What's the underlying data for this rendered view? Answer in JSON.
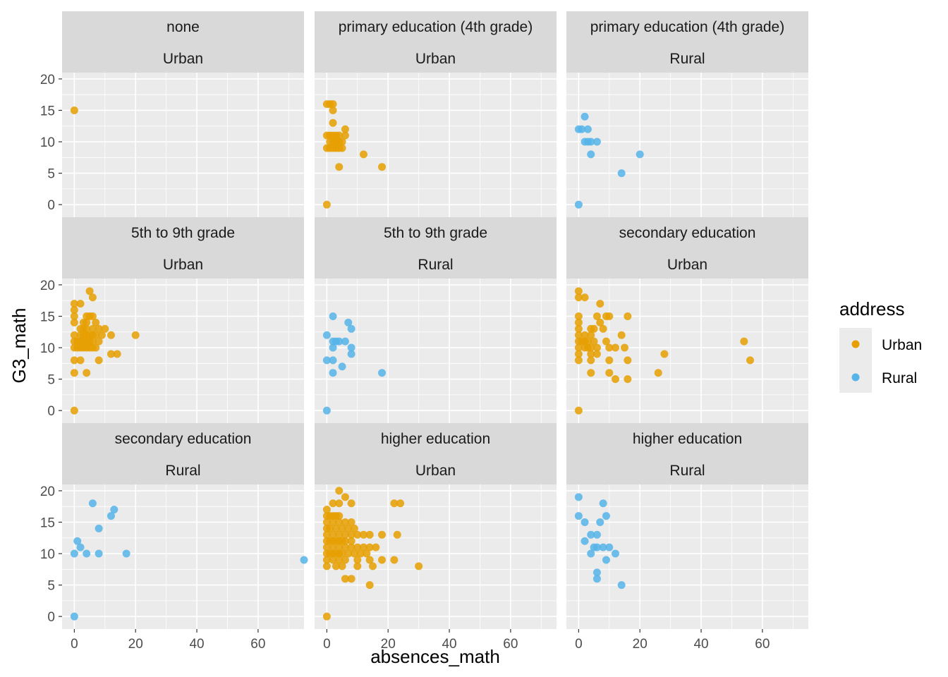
{
  "chart_data": {
    "type": "scatter",
    "xlabel": "absences_math",
    "ylabel": "G3_math",
    "xlim": [
      -4,
      75
    ],
    "ylim": [
      -2,
      21
    ],
    "x_ticks": [
      0,
      20,
      40,
      60
    ],
    "y_ticks": [
      0,
      5,
      10,
      15,
      20
    ],
    "grid": true,
    "legend": {
      "title": "address",
      "placement": "right",
      "items": [
        {
          "name": "Urban",
          "color": "#E69F00"
        },
        {
          "name": "Rural",
          "color": "#56B4E9"
        }
      ]
    },
    "panels": [
      {
        "strip1": "none",
        "strip2": "Urban",
        "address": "Urban",
        "points": [
          [
            0,
            15
          ]
        ]
      },
      {
        "strip1": "primary education (4th grade)",
        "strip2": "Urban",
        "address": "Urban",
        "points": [
          [
            0,
            16
          ],
          [
            1,
            16
          ],
          [
            2,
            16
          ],
          [
            2,
            15
          ],
          [
            2,
            13
          ],
          [
            0,
            11
          ],
          [
            1,
            11
          ],
          [
            2,
            11
          ],
          [
            3,
            11
          ],
          [
            4,
            11
          ],
          [
            6,
            12
          ],
          [
            6,
            11
          ],
          [
            1,
            10
          ],
          [
            2,
            10
          ],
          [
            3,
            10
          ],
          [
            4,
            10
          ],
          [
            5,
            10
          ],
          [
            0,
            9
          ],
          [
            1,
            9
          ],
          [
            2,
            9
          ],
          [
            3,
            9
          ],
          [
            4,
            9
          ],
          [
            5,
            9
          ],
          [
            12,
            8
          ],
          [
            4,
            6
          ],
          [
            18,
            6
          ],
          [
            0,
            0
          ]
        ]
      },
      {
        "strip1": "primary education (4th grade)",
        "strip2": "Rural",
        "address": "Rural",
        "points": [
          [
            2,
            14
          ],
          [
            0,
            12
          ],
          [
            1,
            12
          ],
          [
            3,
            12
          ],
          [
            2,
            10
          ],
          [
            3,
            10
          ],
          [
            4,
            10
          ],
          [
            6,
            10
          ],
          [
            4,
            8
          ],
          [
            20,
            8
          ],
          [
            14,
            5
          ],
          [
            0,
            0
          ]
        ]
      },
      {
        "strip1": "5th to 9th grade",
        "strip2": "Urban",
        "address": "Urban",
        "points": [
          [
            5,
            19
          ],
          [
            0,
            17
          ],
          [
            2,
            17
          ],
          [
            6,
            18
          ],
          [
            0,
            16
          ],
          [
            0,
            15
          ],
          [
            4,
            15
          ],
          [
            5,
            15
          ],
          [
            6,
            15
          ],
          [
            0,
            14
          ],
          [
            3,
            14
          ],
          [
            4,
            14
          ],
          [
            7,
            14
          ],
          [
            2,
            13
          ],
          [
            3,
            13
          ],
          [
            4,
            13
          ],
          [
            6,
            13
          ],
          [
            8,
            13
          ],
          [
            10,
            13
          ],
          [
            0,
            12
          ],
          [
            2,
            12
          ],
          [
            3,
            12
          ],
          [
            4,
            12
          ],
          [
            5,
            12
          ],
          [
            6,
            12
          ],
          [
            7,
            12
          ],
          [
            9,
            12
          ],
          [
            12,
            12
          ],
          [
            20,
            12
          ],
          [
            0,
            11
          ],
          [
            1,
            11
          ],
          [
            2,
            11
          ],
          [
            3,
            11
          ],
          [
            4,
            11
          ],
          [
            5,
            11
          ],
          [
            6,
            11
          ],
          [
            8,
            11
          ],
          [
            0,
            10
          ],
          [
            1,
            10
          ],
          [
            2,
            10
          ],
          [
            3,
            10
          ],
          [
            4,
            10
          ],
          [
            5,
            10
          ],
          [
            6,
            10
          ],
          [
            7,
            10
          ],
          [
            12,
            9
          ],
          [
            14,
            9
          ],
          [
            0,
            8
          ],
          [
            2,
            8
          ],
          [
            8,
            8
          ],
          [
            0,
            6
          ],
          [
            4,
            6
          ],
          [
            0,
            0
          ]
        ]
      },
      {
        "strip1": "5th to 9th grade",
        "strip2": "Rural",
        "address": "Rural",
        "points": [
          [
            2,
            15
          ],
          [
            7,
            14
          ],
          [
            8,
            13
          ],
          [
            0,
            12
          ],
          [
            2,
            11
          ],
          [
            3,
            11
          ],
          [
            4,
            11
          ],
          [
            6,
            11
          ],
          [
            2,
            10
          ],
          [
            8,
            10
          ],
          [
            8,
            9
          ],
          [
            0,
            8
          ],
          [
            2,
            8
          ],
          [
            5,
            7
          ],
          [
            2,
            6
          ],
          [
            18,
            6
          ],
          [
            0,
            0
          ]
        ]
      },
      {
        "strip1": "secondary education",
        "strip2": "Urban",
        "address": "Urban",
        "points": [
          [
            0,
            19
          ],
          [
            2,
            18
          ],
          [
            0,
            18
          ],
          [
            7,
            17
          ],
          [
            0,
            15
          ],
          [
            6,
            15
          ],
          [
            9,
            15
          ],
          [
            10,
            15
          ],
          [
            16,
            15
          ],
          [
            0,
            14
          ],
          [
            7,
            14
          ],
          [
            5,
            13
          ],
          [
            0,
            13
          ],
          [
            4,
            13
          ],
          [
            8,
            13
          ],
          [
            0,
            12
          ],
          [
            2,
            12
          ],
          [
            4,
            12
          ],
          [
            14,
            12
          ],
          [
            0,
            11
          ],
          [
            1,
            11
          ],
          [
            2,
            11
          ],
          [
            3,
            11
          ],
          [
            5,
            11
          ],
          [
            9,
            11
          ],
          [
            54,
            11
          ],
          [
            0,
            10
          ],
          [
            2,
            10
          ],
          [
            3,
            10
          ],
          [
            4,
            10
          ],
          [
            6,
            10
          ],
          [
            10,
            10
          ],
          [
            12,
            10
          ],
          [
            15,
            10
          ],
          [
            0,
            9
          ],
          [
            4,
            9
          ],
          [
            6,
            9
          ],
          [
            28,
            9
          ],
          [
            0,
            8
          ],
          [
            4,
            8
          ],
          [
            10,
            8
          ],
          [
            16,
            8
          ],
          [
            56,
            8
          ],
          [
            4,
            6
          ],
          [
            10,
            6
          ],
          [
            26,
            6
          ],
          [
            12,
            5
          ],
          [
            16,
            5
          ],
          [
            0,
            0
          ]
        ]
      },
      {
        "strip1": "secondary education",
        "strip2": "Rural",
        "address": "Rural",
        "points": [
          [
            6,
            18
          ],
          [
            13,
            17
          ],
          [
            12,
            16
          ],
          [
            8,
            14
          ],
          [
            1,
            12
          ],
          [
            2,
            11
          ],
          [
            0,
            10
          ],
          [
            4,
            10
          ],
          [
            8,
            10
          ],
          [
            17,
            10
          ],
          [
            75,
            9
          ],
          [
            0,
            0
          ]
        ]
      },
      {
        "strip1": "higher education",
        "strip2": "Urban",
        "address": "Urban",
        "points": [
          [
            4,
            20
          ],
          [
            6,
            19
          ],
          [
            0,
            17
          ],
          [
            2,
            18
          ],
          [
            4,
            18
          ],
          [
            8,
            18
          ],
          [
            22,
            18
          ],
          [
            24,
            18
          ],
          [
            0,
            16
          ],
          [
            1,
            16
          ],
          [
            2,
            16
          ],
          [
            3,
            16
          ],
          [
            4,
            16
          ],
          [
            0,
            15
          ],
          [
            2,
            15
          ],
          [
            4,
            15
          ],
          [
            6,
            15
          ],
          [
            8,
            15
          ],
          [
            0,
            14
          ],
          [
            1,
            14
          ],
          [
            3,
            14
          ],
          [
            5,
            14
          ],
          [
            7,
            14
          ],
          [
            9,
            14
          ],
          [
            0,
            13
          ],
          [
            2,
            13
          ],
          [
            4,
            13
          ],
          [
            6,
            13
          ],
          [
            8,
            13
          ],
          [
            10,
            13
          ],
          [
            12,
            13
          ],
          [
            14,
            13
          ],
          [
            18,
            13
          ],
          [
            23,
            13
          ],
          [
            0,
            12
          ],
          [
            1,
            12
          ],
          [
            2,
            12
          ],
          [
            3,
            12
          ],
          [
            4,
            12
          ],
          [
            5,
            12
          ],
          [
            6,
            12
          ],
          [
            8,
            12
          ],
          [
            0,
            11
          ],
          [
            2,
            11
          ],
          [
            4,
            11
          ],
          [
            6,
            11
          ],
          [
            8,
            11
          ],
          [
            10,
            11
          ],
          [
            12,
            11
          ],
          [
            14,
            11
          ],
          [
            16,
            11
          ],
          [
            0,
            10
          ],
          [
            1,
            10
          ],
          [
            2,
            10
          ],
          [
            3,
            10
          ],
          [
            4,
            10
          ],
          [
            5,
            10
          ],
          [
            7,
            10
          ],
          [
            9,
            10
          ],
          [
            11,
            10
          ],
          [
            13,
            10
          ],
          [
            0,
            9
          ],
          [
            2,
            9
          ],
          [
            4,
            9
          ],
          [
            6,
            9
          ],
          [
            10,
            9
          ],
          [
            14,
            9
          ],
          [
            18,
            9
          ],
          [
            22,
            9
          ],
          [
            0,
            8
          ],
          [
            3,
            8
          ],
          [
            5,
            8
          ],
          [
            10,
            8
          ],
          [
            15,
            8
          ],
          [
            30,
            8
          ],
          [
            8,
            6
          ],
          [
            14,
            5
          ],
          [
            6,
            6
          ],
          [
            0,
            0
          ]
        ]
      },
      {
        "strip1": "higher education",
        "strip2": "Rural",
        "address": "Rural",
        "points": [
          [
            0,
            19
          ],
          [
            8,
            18
          ],
          [
            0,
            16
          ],
          [
            9,
            16
          ],
          [
            2,
            15
          ],
          [
            7,
            15
          ],
          [
            4,
            13
          ],
          [
            6,
            13
          ],
          [
            2,
            12
          ],
          [
            5,
            11
          ],
          [
            6,
            11
          ],
          [
            8,
            11
          ],
          [
            10,
            11
          ],
          [
            12,
            10
          ],
          [
            4,
            10
          ],
          [
            9,
            9
          ],
          [
            6,
            7
          ],
          [
            6,
            6
          ],
          [
            14,
            5
          ]
        ]
      }
    ]
  }
}
